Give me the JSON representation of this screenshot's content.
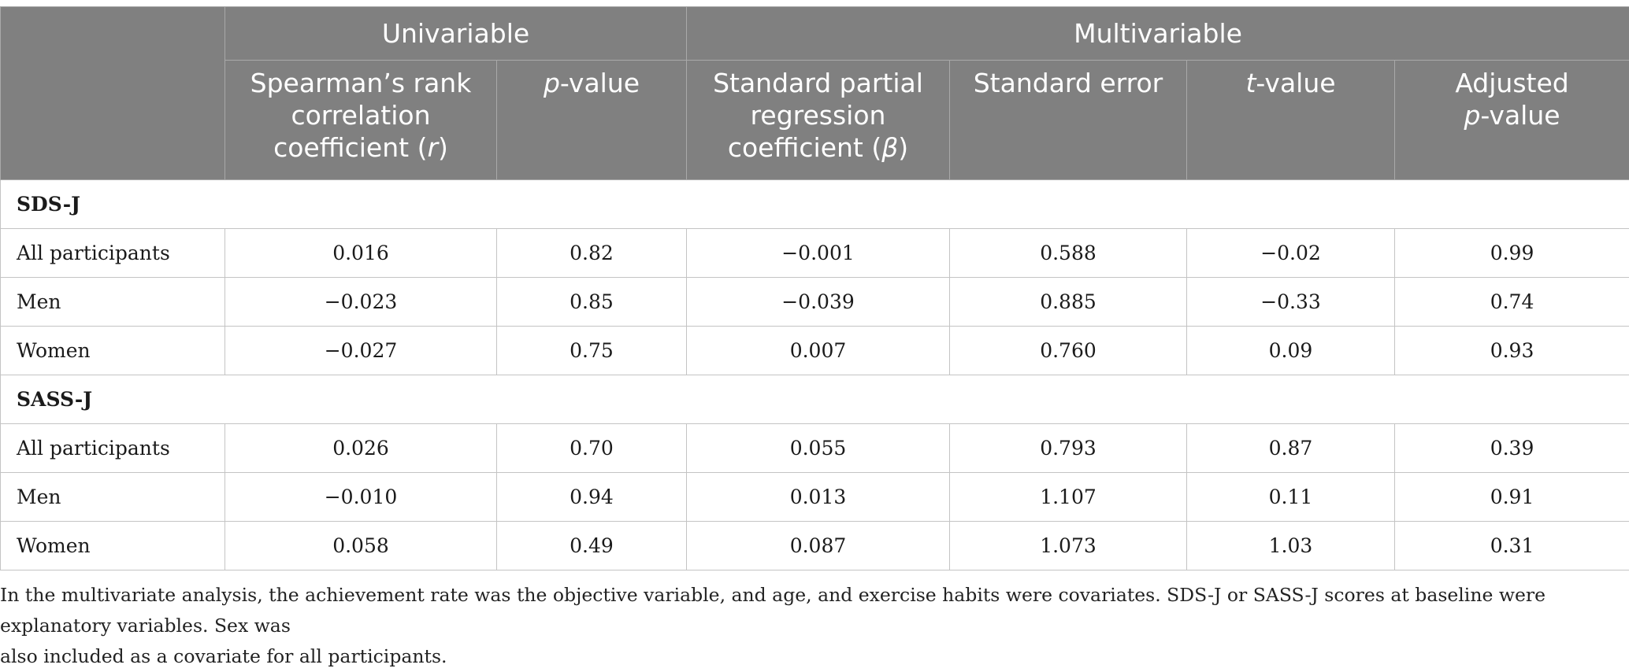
{
  "table": {
    "group_headers": {
      "univariable": "Univariable",
      "multivariable": "Multivariable"
    },
    "column_headers": {
      "spearman": {
        "text": "Spearman’s rank correlation coefficient (",
        "symbol": "r",
        "suffix": ")"
      },
      "pvalue": {
        "italic": "p",
        "text": "-value"
      },
      "beta": {
        "text": "Standard partial regression coefficient (",
        "symbol": "β",
        "suffix": ")"
      },
      "stderr": {
        "text": "Standard error"
      },
      "tvalue": {
        "italic": "t",
        "text": "-value"
      },
      "adjp": {
        "text": "Adjusted ",
        "italic": "p",
        "suffix": "-value"
      }
    },
    "sections": [
      {
        "label": "SDS-J",
        "rows": [
          {
            "label": "All participants",
            "values": [
              "0.016",
              "0.82",
              "−0.001",
              "0.588",
              "−0.02",
              "0.99"
            ]
          },
          {
            "label": "Men",
            "values": [
              "−0.023",
              "0.85",
              "−0.039",
              "0.885",
              "−0.33",
              "0.74"
            ]
          },
          {
            "label": "Women",
            "values": [
              "−0.027",
              "0.75",
              "0.007",
              "0.760",
              "0.09",
              "0.93"
            ]
          }
        ]
      },
      {
        "label": "SASS-J",
        "rows": [
          {
            "label": "All participants",
            "values": [
              "0.026",
              "0.70",
              "0.055",
              "0.793",
              "0.87",
              "0.39"
            ]
          },
          {
            "label": "Men",
            "values": [
              "−0.010",
              "0.94",
              "0.013",
              "1.107",
              "0.11",
              "0.91"
            ]
          },
          {
            "label": "Women",
            "values": [
              "0.058",
              "0.49",
              "0.087",
              "1.073",
              "1.03",
              "0.31"
            ]
          }
        ]
      }
    ],
    "colors": {
      "header_background": "#808080",
      "header_text": "#ffffff",
      "grid_line": "#c4c4c4"
    }
  },
  "footnote": {
    "line1": "In the multivariate analysis, the achievement rate was the objective variable, and age, and exercise habits were covariates. SDS-J or SASS-J scores at baseline were explanatory variables. Sex was",
    "line2": "also included as a covariate for all participants."
  }
}
